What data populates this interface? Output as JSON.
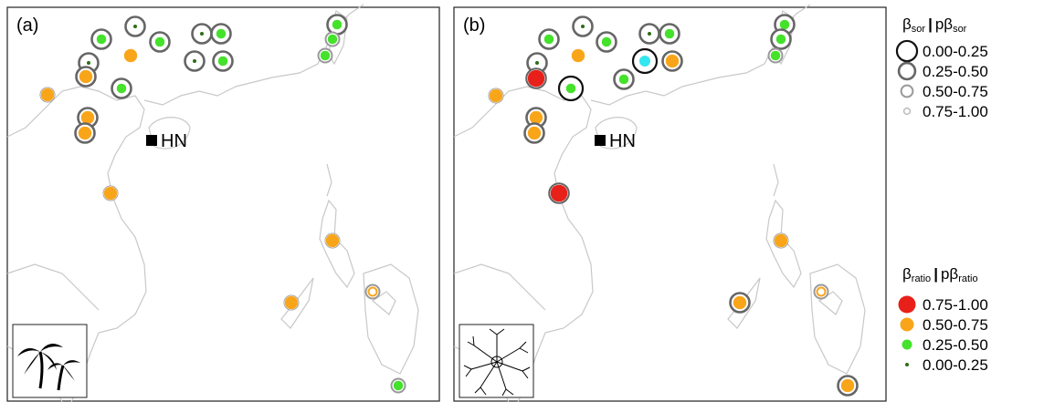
{
  "panels": [
    {
      "label": "(a)",
      "site": "HN"
    },
    {
      "label": "(b)",
      "site": "HN"
    }
  ],
  "legend_sor": {
    "title": {
      "beta": "β",
      "sub": "sor",
      "sep": "|",
      "pbeta": "pβ",
      "psub": "sor"
    },
    "entries": [
      "0.00-0.25",
      "0.25-0.50",
      "0.50-0.75",
      "0.75-1.00"
    ]
  },
  "legend_ratio": {
    "title": {
      "beta": "β",
      "sub": "ratio",
      "sep": "|",
      "pbeta": "pβ",
      "psub": "ratio"
    },
    "entries": [
      "0.75-1.00",
      "0.50-0.75",
      "0.25-0.50",
      "0.00-0.25"
    ]
  }
}
